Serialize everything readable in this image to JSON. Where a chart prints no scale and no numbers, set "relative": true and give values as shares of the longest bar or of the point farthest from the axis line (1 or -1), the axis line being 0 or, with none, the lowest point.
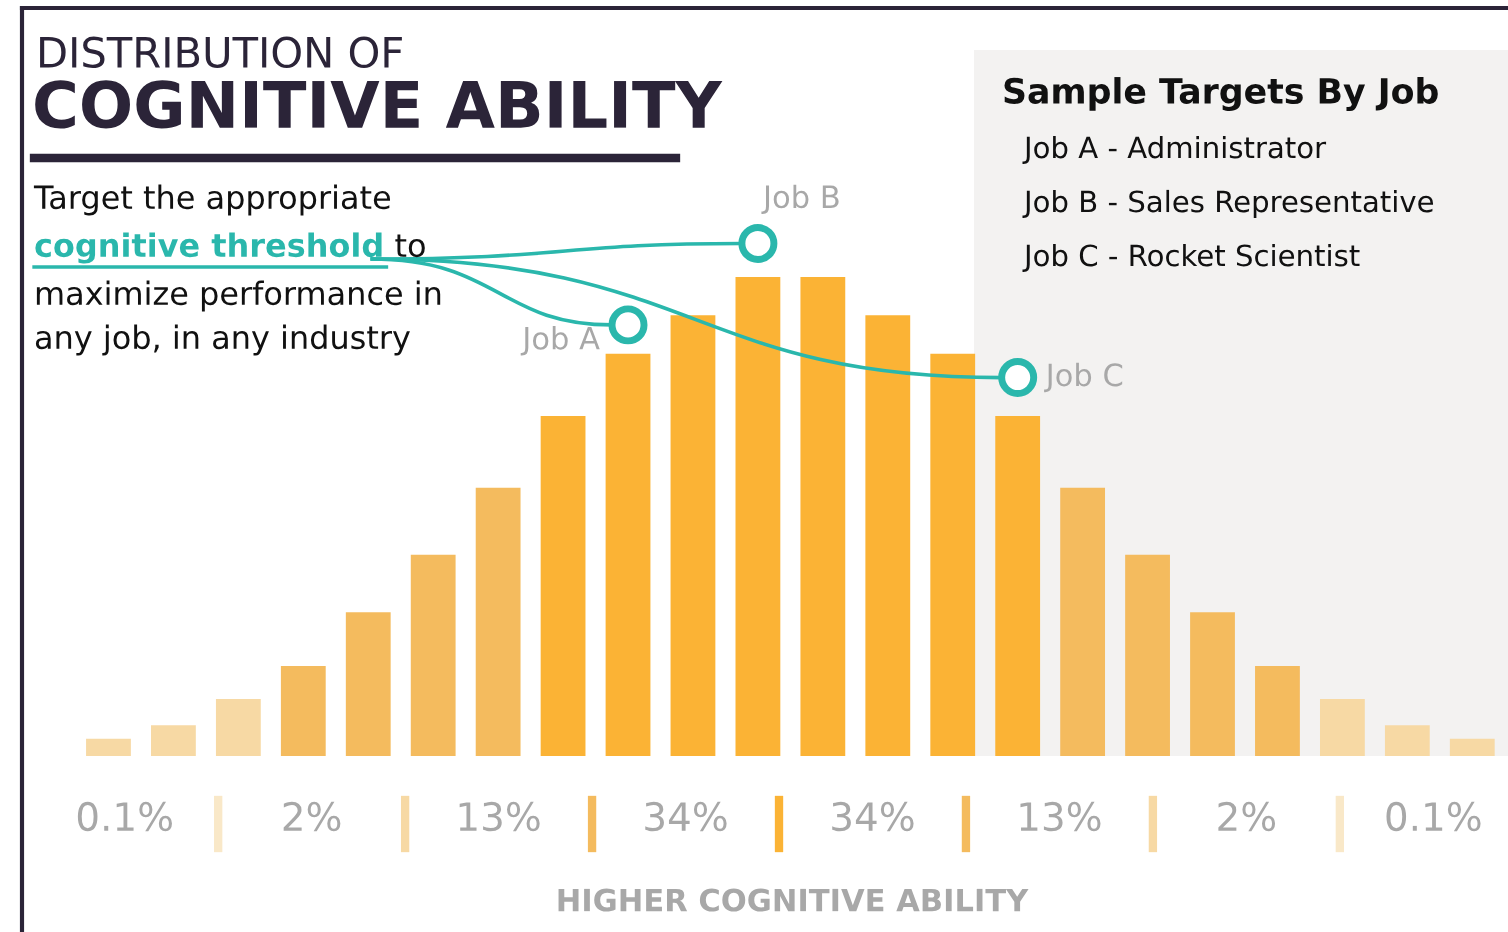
{
  "chart_data": {
    "type": "bar",
    "relative": true,
    "title": "DISTRIBUTION OF",
    "subtitle": "COGNITIVE ABILITY",
    "xlabel": "HIGHER COGNITIVE ABILITY",
    "categories": [
      null,
      null,
      null,
      null,
      null,
      null,
      null,
      null,
      null,
      null,
      null,
      null,
      null,
      null,
      null,
      null,
      null,
      null,
      null,
      null,
      null,
      null
    ],
    "values": [
      0.036,
      0.064,
      0.119,
      0.188,
      0.3,
      0.42,
      0.56,
      0.71,
      0.84,
      0.92,
      1,
      1,
      0.92,
      0.84,
      0.71,
      0.56,
      0.42,
      0.3,
      0.188,
      0.119,
      0.064,
      0.036
    ],
    "colors": [
      "#f7d9a4",
      "#f7d9a4",
      "#f7d9a4",
      "#f4bb5e",
      "#f4bb5e",
      "#f4bb5e",
      "#f4bb5e",
      "#fbb335",
      "#fbb335",
      "#fbb335",
      "#fbb335",
      "#fbb335",
      "#fbb335",
      "#fbb335",
      "#fbb335",
      "#f4bb5e",
      "#f4bb5e",
      "#f4bb5e",
      "#f4bb5e",
      "#f7d9a4",
      "#f7d9a4",
      "#f7d9a4"
    ],
    "annotations": [
      "Target the appropriate",
      "cognitive threshold",
      "to",
      "maximize performance in",
      "any job, in any industry",
      "Job A",
      "Job B",
      "Job C",
      "Sample Targets By Job",
      "Job A - Administrator",
      "Job B - Sales Representative",
      "Job C - Rocket Scientist",
      "0.1%",
      "2%",
      "13%",
      "34%",
      "34%",
      "13%",
      "2%",
      "0.1%"
    ],
    "grid": false,
    "legend": false
  }
}
